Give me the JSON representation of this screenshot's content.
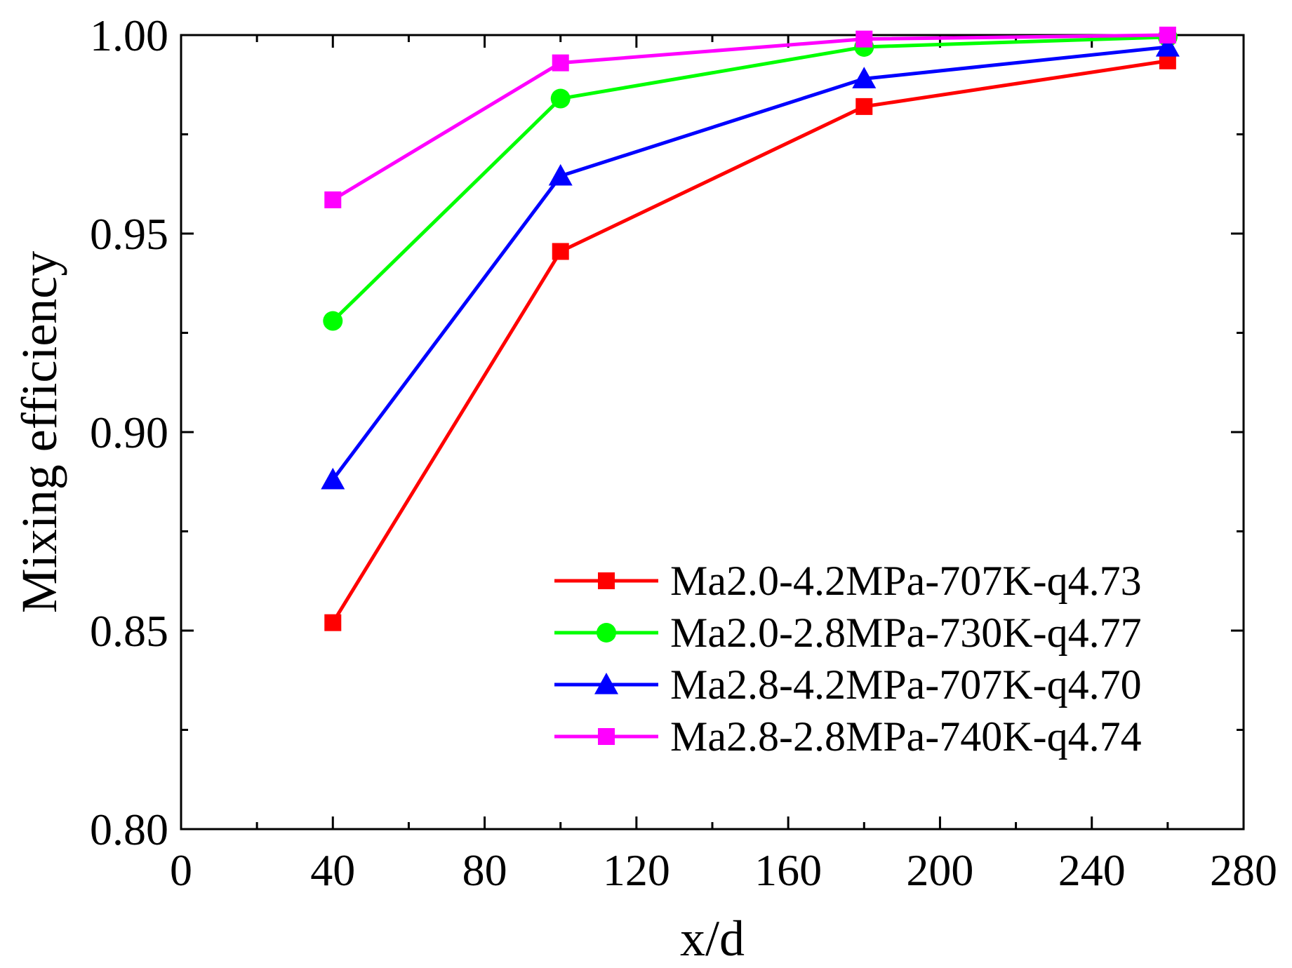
{
  "chart_data": {
    "type": "line",
    "title": "",
    "xlabel": "x/d",
    "ylabel": "Mixing efficiency",
    "xlim": [
      0,
      280
    ],
    "ylim": [
      0.8,
      1.0
    ],
    "x_ticks": [
      0,
      40,
      80,
      120,
      160,
      200,
      240,
      280
    ],
    "x_tick_labels": [
      "0",
      "40",
      "80",
      "120",
      "160",
      "200",
      "240",
      "280"
    ],
    "y_ticks": [
      0.8,
      0.85,
      0.9,
      0.95,
      1.0
    ],
    "y_tick_labels": [
      "0.80",
      "0.85",
      "0.90",
      "0.95",
      "1.00"
    ],
    "grid": false,
    "legend_position": "bottom-right",
    "x": [
      40,
      100,
      180,
      260
    ],
    "series": [
      {
        "name": "Ma2.0-4.2MPa-707K-q4.73",
        "color": "#ff0000",
        "marker": "square",
        "values": [
          0.852,
          0.9455,
          0.982,
          0.9935
        ]
      },
      {
        "name": "Ma2.0-2.8MPa-730K-q4.77",
        "color": "#00ff00",
        "marker": "circle",
        "values": [
          0.928,
          0.984,
          0.997,
          0.9995
        ]
      },
      {
        "name": "Ma2.8-4.2MPa-707K-q4.70",
        "color": "#0000ff",
        "marker": "triangle",
        "values": [
          0.888,
          0.9645,
          0.989,
          0.997
        ]
      },
      {
        "name": "Ma2.8-2.8MPa-740K-q4.74",
        "color": "#ff00ff",
        "marker": "square",
        "values": [
          0.9585,
          0.993,
          0.999,
          1.0
        ]
      }
    ]
  }
}
